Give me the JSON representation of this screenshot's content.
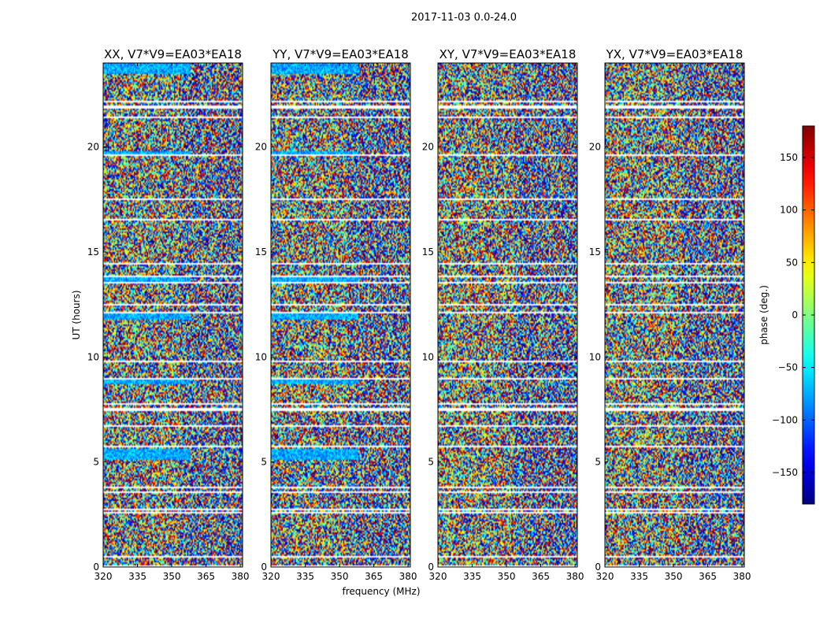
{
  "chart_data": {
    "type": "heatmap",
    "title": "2017-11-03 0.0-24.0",
    "xlabel": "frequency (MHz)",
    "ylabel": "UT (hours)",
    "xlim": [
      320,
      381
    ],
    "ylim": [
      0,
      24
    ],
    "xticks": [
      320,
      335,
      350,
      365,
      380
    ],
    "yticks": [
      0,
      5,
      10,
      15,
      20
    ],
    "panels": [
      {
        "title": "XX, V7*V9=EA03*EA18",
        "seed": 11,
        "blue_bias": true
      },
      {
        "title": "YY, V7*V9=EA03*EA18",
        "seed": 23,
        "blue_bias": true
      },
      {
        "title": "XY, V7*V9=EA03*EA18",
        "seed": 37,
        "blue_bias": false
      },
      {
        "title": "YX, V7*V9=EA03*EA18",
        "seed": 53,
        "blue_bias": false
      }
    ],
    "flagged_hours": [
      [
        0.45,
        0.52
      ],
      [
        0.0,
        0.06
      ],
      [
        2.55,
        2.6
      ],
      [
        2.7,
        2.75
      ],
      [
        3.55,
        3.6
      ],
      [
        3.75,
        3.8
      ],
      [
        3.95,
        4.0
      ],
      [
        4.85,
        4.9
      ],
      [
        5.7,
        5.8
      ],
      [
        6.7,
        6.75
      ],
      [
        7.4,
        7.55
      ],
      [
        7.75,
        7.8
      ],
      [
        8.95,
        9.0
      ],
      [
        9.75,
        9.8
      ],
      [
        12.1,
        12.15
      ],
      [
        12.45,
        12.5
      ],
      [
        13.5,
        13.55
      ],
      [
        13.8,
        13.9
      ],
      [
        14.4,
        14.45
      ],
      [
        16.5,
        16.55
      ],
      [
        17.5,
        17.55
      ],
      [
        18.5,
        18.55
      ],
      [
        19.55,
        19.62
      ],
      [
        20.9,
        20.95
      ],
      [
        21.4,
        21.45
      ],
      [
        21.85,
        21.95
      ],
      [
        22.15,
        22.2
      ]
    ],
    "colorbar": {
      "label": "phase (deg.)",
      "range": [
        -180,
        180
      ],
      "ticks": [
        -150,
        -100,
        -50,
        0,
        50,
        100,
        150
      ],
      "colormap": "jet"
    }
  }
}
